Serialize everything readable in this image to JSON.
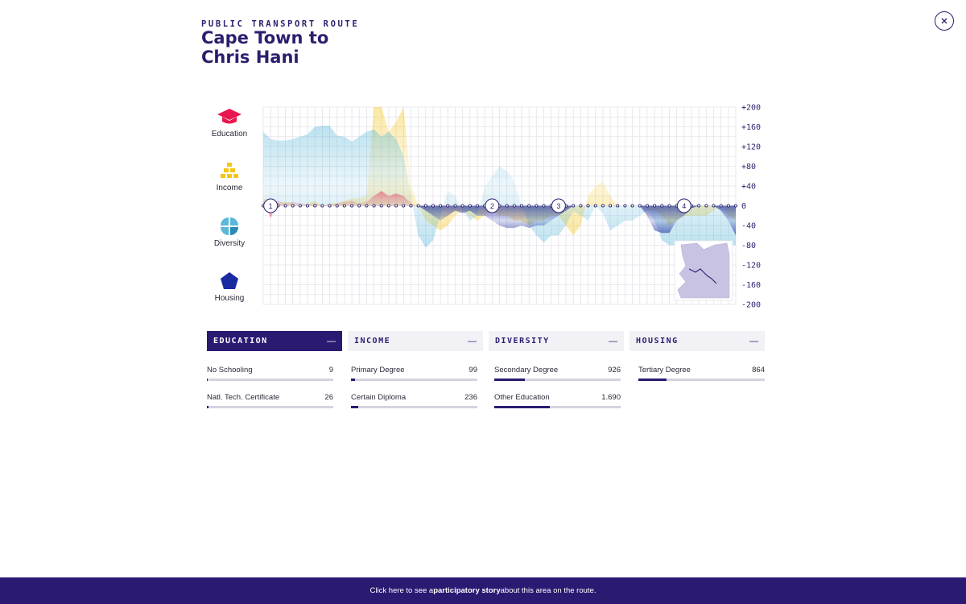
{
  "header": {
    "kicker": "PUBLIC TRANSPORT ROUTE",
    "title_line1": "Cape Town to",
    "title_line2": "Chris Hani"
  },
  "legend": [
    {
      "label": "Education",
      "icon": "graduation-cap-icon",
      "color": "#e8174f"
    },
    {
      "label": "Income",
      "icon": "stacked-coins-icon",
      "color": "#f5c518"
    },
    {
      "label": "Diversity",
      "icon": "pie-quarters-icon",
      "color": "#5bb8d8"
    },
    {
      "label": "Housing",
      "icon": "pentagon-house-icon",
      "color": "#1a2aa0"
    }
  ],
  "chart_data": {
    "type": "area",
    "y_ticks": [
      "+200",
      "+160",
      "+120",
      "+80",
      "+40",
      "0",
      "-40",
      "-80",
      "-120",
      "-160",
      "-200"
    ],
    "ylim": [
      -200,
      200
    ],
    "x": [
      0,
      1,
      2,
      3,
      4,
      5,
      6,
      7,
      8,
      9,
      10,
      11,
      12,
      13,
      14,
      15,
      16,
      17,
      18,
      19,
      20,
      21,
      22,
      23,
      24,
      25,
      26,
      27,
      28,
      29,
      30,
      31,
      32,
      33,
      34,
      35,
      36,
      37,
      38,
      39,
      40,
      41,
      42,
      43,
      44,
      45,
      46,
      47,
      48,
      49,
      50,
      51,
      52,
      53,
      54,
      55,
      56,
      57,
      58,
      59,
      60,
      61,
      62,
      63,
      64
    ],
    "stop_markers": [
      {
        "label": "1",
        "x": 1
      },
      {
        "label": "2",
        "x": 31
      },
      {
        "label": "3",
        "x": 40
      },
      {
        "label": "4",
        "x": 57
      }
    ],
    "grid": true,
    "series": [
      {
        "color": "#5bb8d8",
        "values": [
          150,
          135,
          132,
          132,
          135,
          140,
          145,
          160,
          162,
          162,
          142,
          140,
          130,
          140,
          150,
          155,
          140,
          150,
          135,
          100,
          20,
          -60,
          -85,
          -70,
          -20,
          30,
          20,
          -10,
          -30,
          -20,
          40,
          60,
          80,
          70,
          50,
          0,
          -40,
          -60,
          -75,
          -60,
          -60,
          -40,
          -10,
          -20,
          -30,
          0,
          -15,
          -50,
          -40,
          -30,
          -30,
          -20,
          -10,
          -30,
          -70,
          -80,
          -80,
          -80,
          -80,
          -80,
          -80,
          -80,
          -80,
          -80,
          -80
        ]
      },
      {
        "color": "#f5c518",
        "values": [
          15,
          10,
          5,
          8,
          5,
          0,
          5,
          10,
          0,
          5,
          5,
          10,
          15,
          15,
          20,
          200,
          200,
          150,
          170,
          200,
          40,
          0,
          -30,
          -40,
          -50,
          -40,
          -20,
          -10,
          -20,
          -30,
          -20,
          -10,
          -20,
          -20,
          -30,
          -30,
          -40,
          -30,
          -30,
          -20,
          -20,
          -40,
          -60,
          -40,
          20,
          40,
          50,
          20,
          0,
          0,
          0,
          0,
          -10,
          -10,
          -20,
          -40,
          -30,
          -20,
          -20,
          -20,
          -20,
          -10,
          0,
          -20,
          -30
        ]
      },
      {
        "color": "#e8174f",
        "values": [
          10,
          -25,
          10,
          5,
          8,
          5,
          3,
          5,
          0,
          3,
          5,
          8,
          10,
          5,
          8,
          20,
          30,
          20,
          25,
          20,
          5,
          0,
          0,
          0,
          0,
          0,
          0,
          0,
          0,
          0,
          0,
          0,
          0,
          0,
          0,
          0,
          0,
          0,
          0,
          0,
          0,
          0,
          0,
          0,
          0,
          0,
          0,
          0,
          0,
          0,
          0,
          0,
          0,
          0,
          0,
          0,
          0,
          0,
          0,
          0,
          0,
          0,
          0,
          0,
          0
        ]
      },
      {
        "color": "#1a2aa0",
        "values": [
          0,
          0,
          0,
          0,
          0,
          0,
          0,
          0,
          0,
          0,
          0,
          0,
          0,
          0,
          0,
          0,
          0,
          0,
          0,
          0,
          0,
          0,
          -10,
          -20,
          -30,
          -20,
          -10,
          -15,
          -10,
          -20,
          -20,
          -30,
          -40,
          -45,
          -45,
          -40,
          -45,
          -40,
          -40,
          -30,
          -20,
          -10,
          0,
          0,
          0,
          0,
          0,
          0,
          0,
          0,
          0,
          0,
          -20,
          -50,
          -55,
          -55,
          -30,
          -20,
          -5,
          0,
          0,
          0,
          -10,
          -30,
          -60
        ]
      }
    ]
  },
  "tabs": [
    {
      "label": "EDUCATION",
      "minus": "—"
    },
    {
      "label": "INCOME",
      "minus": "—"
    },
    {
      "label": "DIVERSITY",
      "minus": "—"
    },
    {
      "label": "HOUSING",
      "minus": "—"
    }
  ],
  "stats": [
    {
      "label": "No Schooling",
      "value": "9",
      "fraction": 0.005
    },
    {
      "label": "Natl. Tech. Certificate",
      "value": "26",
      "fraction": 0.015
    },
    {
      "label": "Primary Degree",
      "value": "99",
      "fraction": 0.03
    },
    {
      "label": "Certain Diploma",
      "value": "236",
      "fraction": 0.06
    },
    {
      "label": "Secondary Degree",
      "value": "926",
      "fraction": 0.24
    },
    {
      "label": "Other Education",
      "value": "1.690",
      "fraction": 0.44
    },
    {
      "label": "Tertiary Degree",
      "value": "864",
      "fraction": 0.22
    }
  ],
  "footer": {
    "text_before": "Click here to see a ",
    "text_bold": "participatory story",
    "text_after": " about this area on the route."
  }
}
